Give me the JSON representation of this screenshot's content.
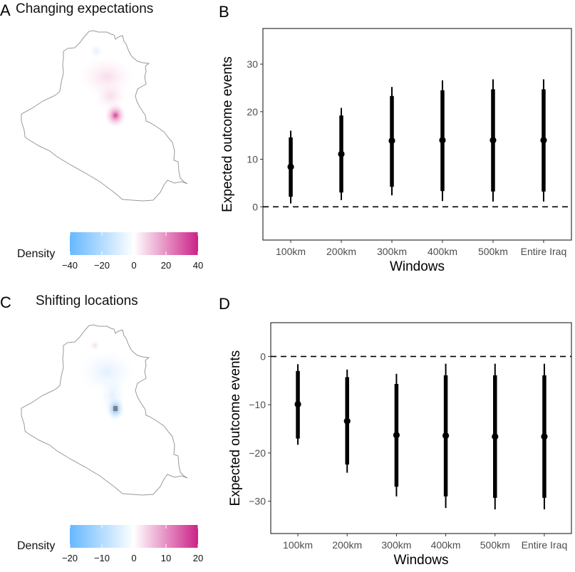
{
  "figure": {
    "panels": {
      "A": {
        "letter": "A",
        "title": "Changing expectations"
      },
      "B": {
        "letter": "B"
      },
      "C": {
        "letter": "C",
        "title": "Shifting locations"
      },
      "D": {
        "letter": "D"
      }
    }
  },
  "maps": [
    {
      "panel": "A",
      "region": "Iraq",
      "legend": {
        "title": "Density",
        "range": [
          -40,
          40
        ],
        "ticks": [
          "−40",
          "−20",
          "0",
          "20",
          "40"
        ],
        "tick_values": [
          -40,
          -20,
          0,
          20,
          40
        ],
        "low_color": "#66b8ff",
        "mid_color": "#ffffff",
        "high_color": "#cc2288"
      },
      "hotspots": [
        {
          "location": "central (Baghdad area)",
          "sign": "positive",
          "intensity": 0.85
        },
        {
          "location": "north-central corridor",
          "sign": "positive",
          "intensity": 0.15
        },
        {
          "location": "north (Mosul area)",
          "sign": "negative",
          "intensity": 0.05
        }
      ]
    },
    {
      "panel": "C",
      "region": "Iraq",
      "legend": {
        "title": "Density",
        "range": [
          -20,
          20
        ],
        "ticks": [
          "−20",
          "−10",
          "0",
          "10",
          "20"
        ],
        "tick_values": [
          -20,
          -10,
          0,
          10,
          20
        ],
        "low_color": "#66b8ff",
        "mid_color": "#ffffff",
        "high_color": "#cc2288"
      },
      "hotspots": [
        {
          "location": "central (Baghdad area)",
          "sign": "negative",
          "intensity": 0.9,
          "out_of_range_marker": "#808080"
        },
        {
          "location": "north-central corridor",
          "sign": "negative",
          "intensity": 0.2
        },
        {
          "location": "north (Mosul area)",
          "sign": "positive",
          "intensity": 0.3
        }
      ]
    }
  ],
  "chart_data": [
    {
      "panel": "B",
      "type": "pointrange",
      "title": "",
      "xlabel": "Windows",
      "ylabel": "Expected outcome events",
      "categories": [
        "100km",
        "200km",
        "300km",
        "400km",
        "500km",
        "Entire Iraq"
      ],
      "point": [
        8.4,
        11.1,
        13.9,
        14.0,
        14.0,
        14.0
      ],
      "inner_low": [
        2.1,
        3.0,
        4.2,
        3.3,
        3.2,
        3.2
      ],
      "inner_high": [
        14.6,
        19.2,
        23.3,
        24.5,
        24.7,
        24.7
      ],
      "outer_low": [
        0.7,
        1.4,
        2.4,
        1.2,
        1.1,
        1.1
      ],
      "outer_high": [
        16.0,
        20.8,
        25.2,
        26.6,
        26.8,
        26.8
      ],
      "yticks": [
        0,
        10,
        20,
        30
      ],
      "ytick_labels": [
        "0",
        "10",
        "20",
        "30"
      ],
      "ylim": [
        -7,
        37.5
      ],
      "reference_line": 0,
      "grid": false
    },
    {
      "panel": "D",
      "type": "pointrange",
      "title": "",
      "xlabel": "Windows",
      "ylabel": "Expected outcome events",
      "categories": [
        "100km",
        "200km",
        "300km",
        "400km",
        "500km",
        "Entire Iraq"
      ],
      "point": [
        -9.9,
        -13.4,
        -16.3,
        -16.4,
        -16.6,
        -16.6
      ],
      "inner_low": [
        -17.0,
        -22.4,
        -27.0,
        -29.0,
        -29.3,
        -29.3
      ],
      "inner_high": [
        -3.0,
        -4.3,
        -5.7,
        -3.9,
        -3.9,
        -3.9
      ],
      "outer_low": [
        -18.3,
        -24.1,
        -29.0,
        -31.4,
        -31.7,
        -31.7
      ],
      "outer_high": [
        -1.6,
        -2.7,
        -3.6,
        -1.5,
        -1.5,
        -1.5
      ],
      "yticks": [
        -30,
        -20,
        -10,
        0
      ],
      "ytick_labels": [
        "−30",
        "−20",
        "−10",
        "0"
      ],
      "ylim": [
        -36.7,
        7
      ],
      "reference_line": 0,
      "grid": false
    }
  ]
}
